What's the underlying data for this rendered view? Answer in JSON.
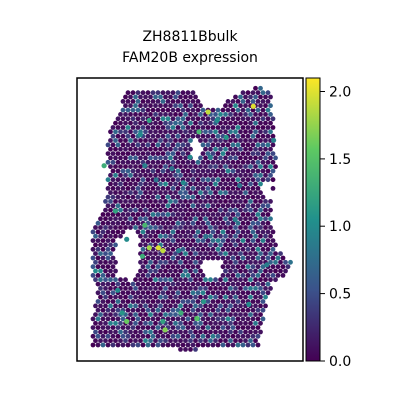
{
  "chart_data": {
    "type": "scatter",
    "plot_kind": "spatial-hexbin-expression",
    "title_line1": "ZH8811Bbulk",
    "title_line2": "FAM20B expression",
    "xlabel": "",
    "ylabel": "",
    "axes_ticks_visible": false,
    "grid": false,
    "colormap": "viridis",
    "color_stops": [
      "#440154",
      "#3b528b",
      "#21918c",
      "#5ec962",
      "#fde725"
    ],
    "background_spot_color": "#46085c",
    "colorbar": {
      "placement": "right",
      "vmin": 0.0,
      "vmax": 2.1,
      "ticks": [
        0.0,
        0.5,
        1.0,
        1.5,
        2.0
      ],
      "tick_labels": [
        "0.0",
        "0.5",
        "1.0",
        "1.5",
        "2.0"
      ]
    },
    "highlighted_spots": [
      {
        "x": 0.58,
        "y": 0.12,
        "value": 1.9
      },
      {
        "x": 0.78,
        "y": 0.1,
        "value": 2.0
      },
      {
        "x": 0.54,
        "y": 0.19,
        "value": 1.4
      },
      {
        "x": 0.32,
        "y": 0.15,
        "value": 1.2
      },
      {
        "x": 0.28,
        "y": 0.2,
        "value": 1.0
      },
      {
        "x": 0.66,
        "y": 0.21,
        "value": 1.1
      },
      {
        "x": 0.12,
        "y": 0.31,
        "value": 1.3
      },
      {
        "x": 0.3,
        "y": 0.31,
        "value": 0.9
      },
      {
        "x": 0.35,
        "y": 0.36,
        "value": 0.8
      },
      {
        "x": 0.47,
        "y": 0.37,
        "value": 1.0
      },
      {
        "x": 0.59,
        "y": 0.28,
        "value": 0.9
      },
      {
        "x": 0.17,
        "y": 0.47,
        "value": 1.2
      },
      {
        "x": 0.3,
        "y": 0.52,
        "value": 1.4
      },
      {
        "x": 0.22,
        "y": 0.57,
        "value": 1.0
      },
      {
        "x": 0.32,
        "y": 0.6,
        "value": 1.8
      },
      {
        "x": 0.29,
        "y": 0.63,
        "value": 1.3
      },
      {
        "x": 0.36,
        "y": 0.6,
        "value": 2.0
      },
      {
        "x": 0.38,
        "y": 0.61,
        "value": 1.9
      },
      {
        "x": 0.45,
        "y": 0.61,
        "value": 0.9
      },
      {
        "x": 0.57,
        "y": 0.56,
        "value": 0.8
      },
      {
        "x": 0.7,
        "y": 0.5,
        "value": 0.9
      },
      {
        "x": 0.18,
        "y": 0.75,
        "value": 1.0
      },
      {
        "x": 0.2,
        "y": 0.83,
        "value": 1.1
      },
      {
        "x": 0.22,
        "y": 0.86,
        "value": 1.6
      },
      {
        "x": 0.46,
        "y": 0.83,
        "value": 1.3
      },
      {
        "x": 0.39,
        "y": 0.89,
        "value": 1.7
      },
      {
        "x": 0.38,
        "y": 0.86,
        "value": 1.2
      },
      {
        "x": 0.53,
        "y": 0.85,
        "value": 1.5
      },
      {
        "x": 0.56,
        "y": 0.79,
        "value": 1.1
      },
      {
        "x": 0.76,
        "y": 0.8,
        "value": 1.0
      },
      {
        "x": 0.84,
        "y": 0.66,
        "value": 0.9
      },
      {
        "x": 0.72,
        "y": 0.38,
        "value": 0.8
      },
      {
        "x": 0.42,
        "y": 0.32,
        "value": 0.8
      },
      {
        "x": 0.5,
        "y": 0.28,
        "value": 1.0
      },
      {
        "x": 0.62,
        "y": 0.15,
        "value": 1.0
      },
      {
        "x": 0.87,
        "y": 0.22,
        "value": 0.9
      }
    ]
  }
}
